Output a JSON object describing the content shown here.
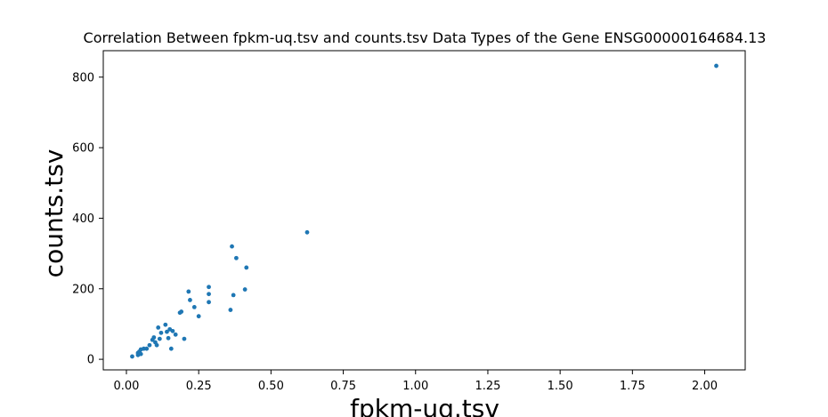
{
  "chart_data": {
    "type": "scatter",
    "title": "Correlation Between fpkm-uq.tsv and counts.tsv Data Types of the Gene ENSG00000164684.13",
    "xlabel": "fpkm-uq.tsv",
    "ylabel": "counts.tsv",
    "xlim": [
      -0.08,
      2.14
    ],
    "ylim": [
      -30,
      875
    ],
    "x_ticks": [
      0.0,
      0.25,
      0.5,
      0.75,
      1.0,
      1.25,
      1.5,
      1.75,
      2.0
    ],
    "x_tick_labels": [
      "0.00",
      "0.25",
      "0.50",
      "0.75",
      "1.00",
      "1.25",
      "1.50",
      "1.75",
      "2.00"
    ],
    "y_ticks": [
      0,
      200,
      400,
      600,
      800
    ],
    "y_tick_labels": [
      "0",
      "200",
      "400",
      "600",
      "800"
    ],
    "grid": false,
    "marker_color": "#1f77b4",
    "series": [
      {
        "points": [
          [
            0.02,
            8
          ],
          [
            0.04,
            12
          ],
          [
            0.04,
            18
          ],
          [
            0.045,
            22
          ],
          [
            0.05,
            15
          ],
          [
            0.05,
            28
          ],
          [
            0.06,
            30
          ],
          [
            0.07,
            30
          ],
          [
            0.08,
            40
          ],
          [
            0.09,
            55
          ],
          [
            0.095,
            62
          ],
          [
            0.1,
            48
          ],
          [
            0.105,
            40
          ],
          [
            0.11,
            90
          ],
          [
            0.115,
            58
          ],
          [
            0.12,
            75
          ],
          [
            0.135,
            98
          ],
          [
            0.14,
            78
          ],
          [
            0.145,
            60
          ],
          [
            0.15,
            85
          ],
          [
            0.155,
            30
          ],
          [
            0.16,
            80
          ],
          [
            0.17,
            70
          ],
          [
            0.185,
            132
          ],
          [
            0.19,
            135
          ],
          [
            0.2,
            58
          ],
          [
            0.215,
            192
          ],
          [
            0.22,
            168
          ],
          [
            0.235,
            148
          ],
          [
            0.25,
            122
          ],
          [
            0.285,
            205
          ],
          [
            0.285,
            185
          ],
          [
            0.285,
            162
          ],
          [
            0.36,
            140
          ],
          [
            0.365,
            320
          ],
          [
            0.37,
            182
          ],
          [
            0.38,
            287
          ],
          [
            0.41,
            198
          ],
          [
            0.415,
            260
          ],
          [
            0.625,
            360
          ],
          [
            2.04,
            832
          ]
        ]
      }
    ]
  }
}
